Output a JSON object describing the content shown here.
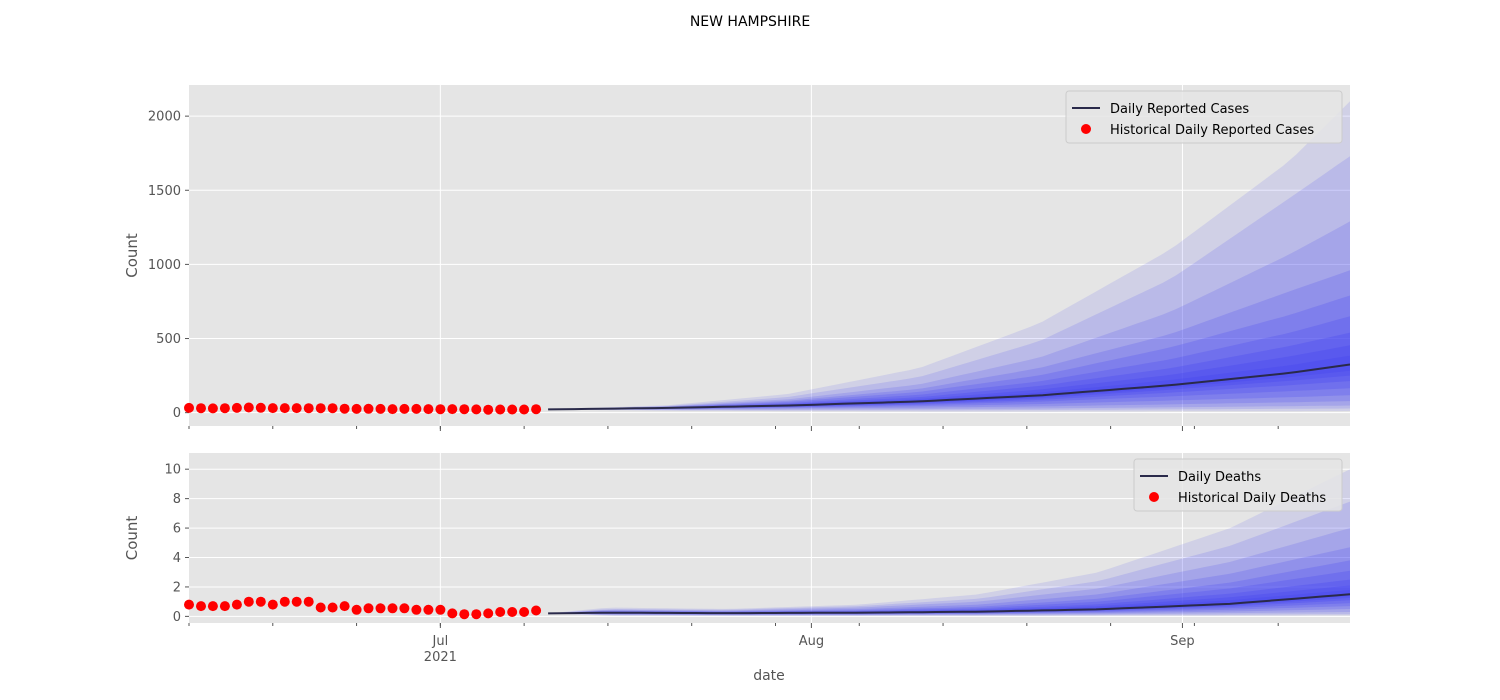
{
  "figure": {
    "title": "NEW HAMPSHIRE",
    "xlabel": "date",
    "x_tick_labels": [
      {
        "date": "2021-07-01",
        "label": "Jul",
        "sublabel": "2021"
      },
      {
        "date": "2021-08-01",
        "label": "Aug",
        "sublabel": ""
      },
      {
        "date": "2021-09-01",
        "label": "Sep",
        "sublabel": ""
      }
    ],
    "xlim": [
      "2021-06-10",
      "2021-09-15"
    ]
  },
  "colors": {
    "background": "#e5e5e5",
    "grid": "#ffffff",
    "median_line": "#2a2a4a",
    "historical_points": "#ff0000",
    "fan_band": "#4646f0"
  },
  "chart_data": [
    {
      "type": "line",
      "ylabel": "Count",
      "ylim": [
        -90,
        2210
      ],
      "yticks": [
        0,
        500,
        1000,
        1500,
        2000
      ],
      "grid": true,
      "legend_position": "top-right",
      "legend": [
        {
          "label": "Daily Reported Cases",
          "kind": "line"
        },
        {
          "label": "Historical Daily Reported Cases",
          "kind": "point"
        }
      ],
      "historical": {
        "name": "Historical Daily Reported Cases",
        "x": [
          "2021-06-10",
          "2021-06-11",
          "2021-06-12",
          "2021-06-13",
          "2021-06-14",
          "2021-06-15",
          "2021-06-16",
          "2021-06-17",
          "2021-06-18",
          "2021-06-19",
          "2021-06-20",
          "2021-06-21",
          "2021-06-22",
          "2021-06-23",
          "2021-06-24",
          "2021-06-25",
          "2021-06-26",
          "2021-06-27",
          "2021-06-28",
          "2021-06-29",
          "2021-06-30",
          "2021-07-01",
          "2021-07-02",
          "2021-07-03",
          "2021-07-04",
          "2021-07-05",
          "2021-07-06",
          "2021-07-07",
          "2021-07-08",
          "2021-07-09"
        ],
        "y": [
          32,
          30,
          29,
          30,
          32,
          35,
          33,
          31,
          31,
          31,
          30,
          30,
          30,
          27,
          25,
          26,
          25,
          24,
          25,
          25,
          24,
          23,
          24,
          23,
          22,
          20,
          21,
          21,
          21,
          23
        ]
      },
      "forecast": {
        "name": "Daily Reported Cases",
        "x": [
          "2021-07-10",
          "2021-07-20",
          "2021-07-30",
          "2021-08-10",
          "2021-08-20",
          "2021-08-31",
          "2021-09-10",
          "2021-09-15"
        ],
        "median": [
          22,
          32,
          48,
          76,
          116,
          185,
          268,
          325
        ],
        "upper_bands": [
          [
            22,
            50,
            125,
            300,
            600,
            1100,
            1700,
            2100
          ],
          [
            22,
            45,
            105,
            240,
            480,
            900,
            1450,
            1730
          ],
          [
            22,
            42,
            90,
            190,
            370,
            680,
            1070,
            1290
          ],
          [
            22,
            40,
            80,
            160,
            300,
            530,
            820,
            960
          ],
          [
            22,
            38,
            72,
            140,
            250,
            440,
            660,
            790
          ],
          [
            22,
            36,
            64,
            120,
            210,
            360,
            540,
            650
          ],
          [
            22,
            35,
            58,
            104,
            180,
            300,
            450,
            540
          ],
          [
            22,
            34,
            54,
            92,
            155,
            255,
            380,
            455
          ],
          [
            22,
            33,
            51,
            84,
            135,
            220,
            320,
            385
          ]
        ],
        "lower_bands": [
          [
            20,
            14,
            10,
            8,
            8,
            9,
            10,
            11
          ],
          [
            21,
            17,
            16,
            16,
            18,
            22,
            26,
            28
          ],
          [
            21,
            20,
            21,
            24,
            28,
            36,
            44,
            48
          ],
          [
            22,
            23,
            28,
            34,
            42,
            56,
            70,
            78
          ],
          [
            22,
            25,
            33,
            44,
            58,
            82,
            104,
            118
          ],
          [
            22,
            27,
            37,
            52,
            74,
            110,
            145,
            165
          ],
          [
            22,
            28,
            40,
            58,
            86,
            135,
            185,
            213
          ],
          [
            22,
            29,
            42,
            64,
            96,
            155,
            215,
            250
          ],
          [
            22,
            30,
            44,
            68,
            104,
            168,
            240,
            282
          ]
        ]
      }
    },
    {
      "type": "line",
      "ylabel": "Count",
      "ylim": [
        -0.45,
        11.1
      ],
      "yticks": [
        0,
        2,
        4,
        6,
        8,
        10
      ],
      "grid": true,
      "legend_position": "top-right",
      "legend": [
        {
          "label": "Daily Deaths",
          "kind": "line"
        },
        {
          "label": "Historical Daily Deaths",
          "kind": "point"
        }
      ],
      "historical": {
        "name": "Historical Daily Deaths",
        "x": [
          "2021-06-10",
          "2021-06-11",
          "2021-06-12",
          "2021-06-13",
          "2021-06-14",
          "2021-06-15",
          "2021-06-16",
          "2021-06-17",
          "2021-06-18",
          "2021-06-19",
          "2021-06-20",
          "2021-06-21",
          "2021-06-22",
          "2021-06-23",
          "2021-06-24",
          "2021-06-25",
          "2021-06-26",
          "2021-06-27",
          "2021-06-28",
          "2021-06-29",
          "2021-06-30",
          "2021-07-01",
          "2021-07-02",
          "2021-07-03",
          "2021-07-04",
          "2021-07-05",
          "2021-07-06",
          "2021-07-07",
          "2021-07-08",
          "2021-07-09"
        ],
        "y": [
          0.8,
          0.7,
          0.7,
          0.7,
          0.8,
          1.0,
          1.0,
          0.8,
          1.0,
          1.0,
          1.0,
          0.6,
          0.6,
          0.7,
          0.45,
          0.55,
          0.55,
          0.55,
          0.55,
          0.45,
          0.45,
          0.45,
          0.2,
          0.15,
          0.15,
          0.2,
          0.3,
          0.3,
          0.3,
          0.4
        ]
      },
      "forecast": {
        "name": "Daily Deaths",
        "x": [
          "2021-07-10",
          "2021-07-15",
          "2021-07-25",
          "2021-08-05",
          "2021-08-15",
          "2021-08-25",
          "2021-09-05",
          "2021-09-15"
        ],
        "median": [
          0.2,
          0.25,
          0.22,
          0.25,
          0.32,
          0.48,
          0.85,
          1.5
        ],
        "upper_bands": [
          [
            0.2,
            0.6,
            0.5,
            0.8,
            1.5,
            3.0,
            6.0,
            10.0
          ],
          [
            0.2,
            0.5,
            0.45,
            0.7,
            1.2,
            2.4,
            4.8,
            7.8
          ],
          [
            0.2,
            0.45,
            0.4,
            0.6,
            1.0,
            1.9,
            3.7,
            6.0
          ],
          [
            0.2,
            0.4,
            0.35,
            0.5,
            0.8,
            1.5,
            2.9,
            4.7
          ],
          [
            0.2,
            0.36,
            0.32,
            0.42,
            0.65,
            1.2,
            2.3,
            3.8
          ],
          [
            0.2,
            0.33,
            0.3,
            0.37,
            0.55,
            1.0,
            1.9,
            3.1
          ],
          [
            0.2,
            0.3,
            0.28,
            0.33,
            0.47,
            0.82,
            1.55,
            2.5
          ],
          [
            0.2,
            0.28,
            0.26,
            0.3,
            0.41,
            0.7,
            1.3,
            2.1
          ],
          [
            0.2,
            0.27,
            0.24,
            0.28,
            0.37,
            0.6,
            1.1,
            1.8
          ]
        ],
        "lower_bands": [
          [
            0.2,
            0.05,
            0.03,
            0.03,
            0.03,
            0.04,
            0.05,
            0.06
          ],
          [
            0.2,
            0.08,
            0.06,
            0.06,
            0.07,
            0.09,
            0.12,
            0.15
          ],
          [
            0.2,
            0.11,
            0.09,
            0.09,
            0.11,
            0.15,
            0.22,
            0.3
          ],
          [
            0.2,
            0.14,
            0.12,
            0.12,
            0.15,
            0.21,
            0.33,
            0.5
          ],
          [
            0.2,
            0.16,
            0.14,
            0.15,
            0.19,
            0.27,
            0.45,
            0.7
          ],
          [
            0.2,
            0.18,
            0.16,
            0.18,
            0.22,
            0.33,
            0.56,
            0.9
          ],
          [
            0.2,
            0.2,
            0.18,
            0.2,
            0.25,
            0.38,
            0.66,
            1.1
          ],
          [
            0.2,
            0.22,
            0.19,
            0.22,
            0.28,
            0.42,
            0.74,
            1.25
          ],
          [
            0.2,
            0.23,
            0.2,
            0.23,
            0.3,
            0.45,
            0.8,
            1.38
          ]
        ]
      }
    }
  ]
}
